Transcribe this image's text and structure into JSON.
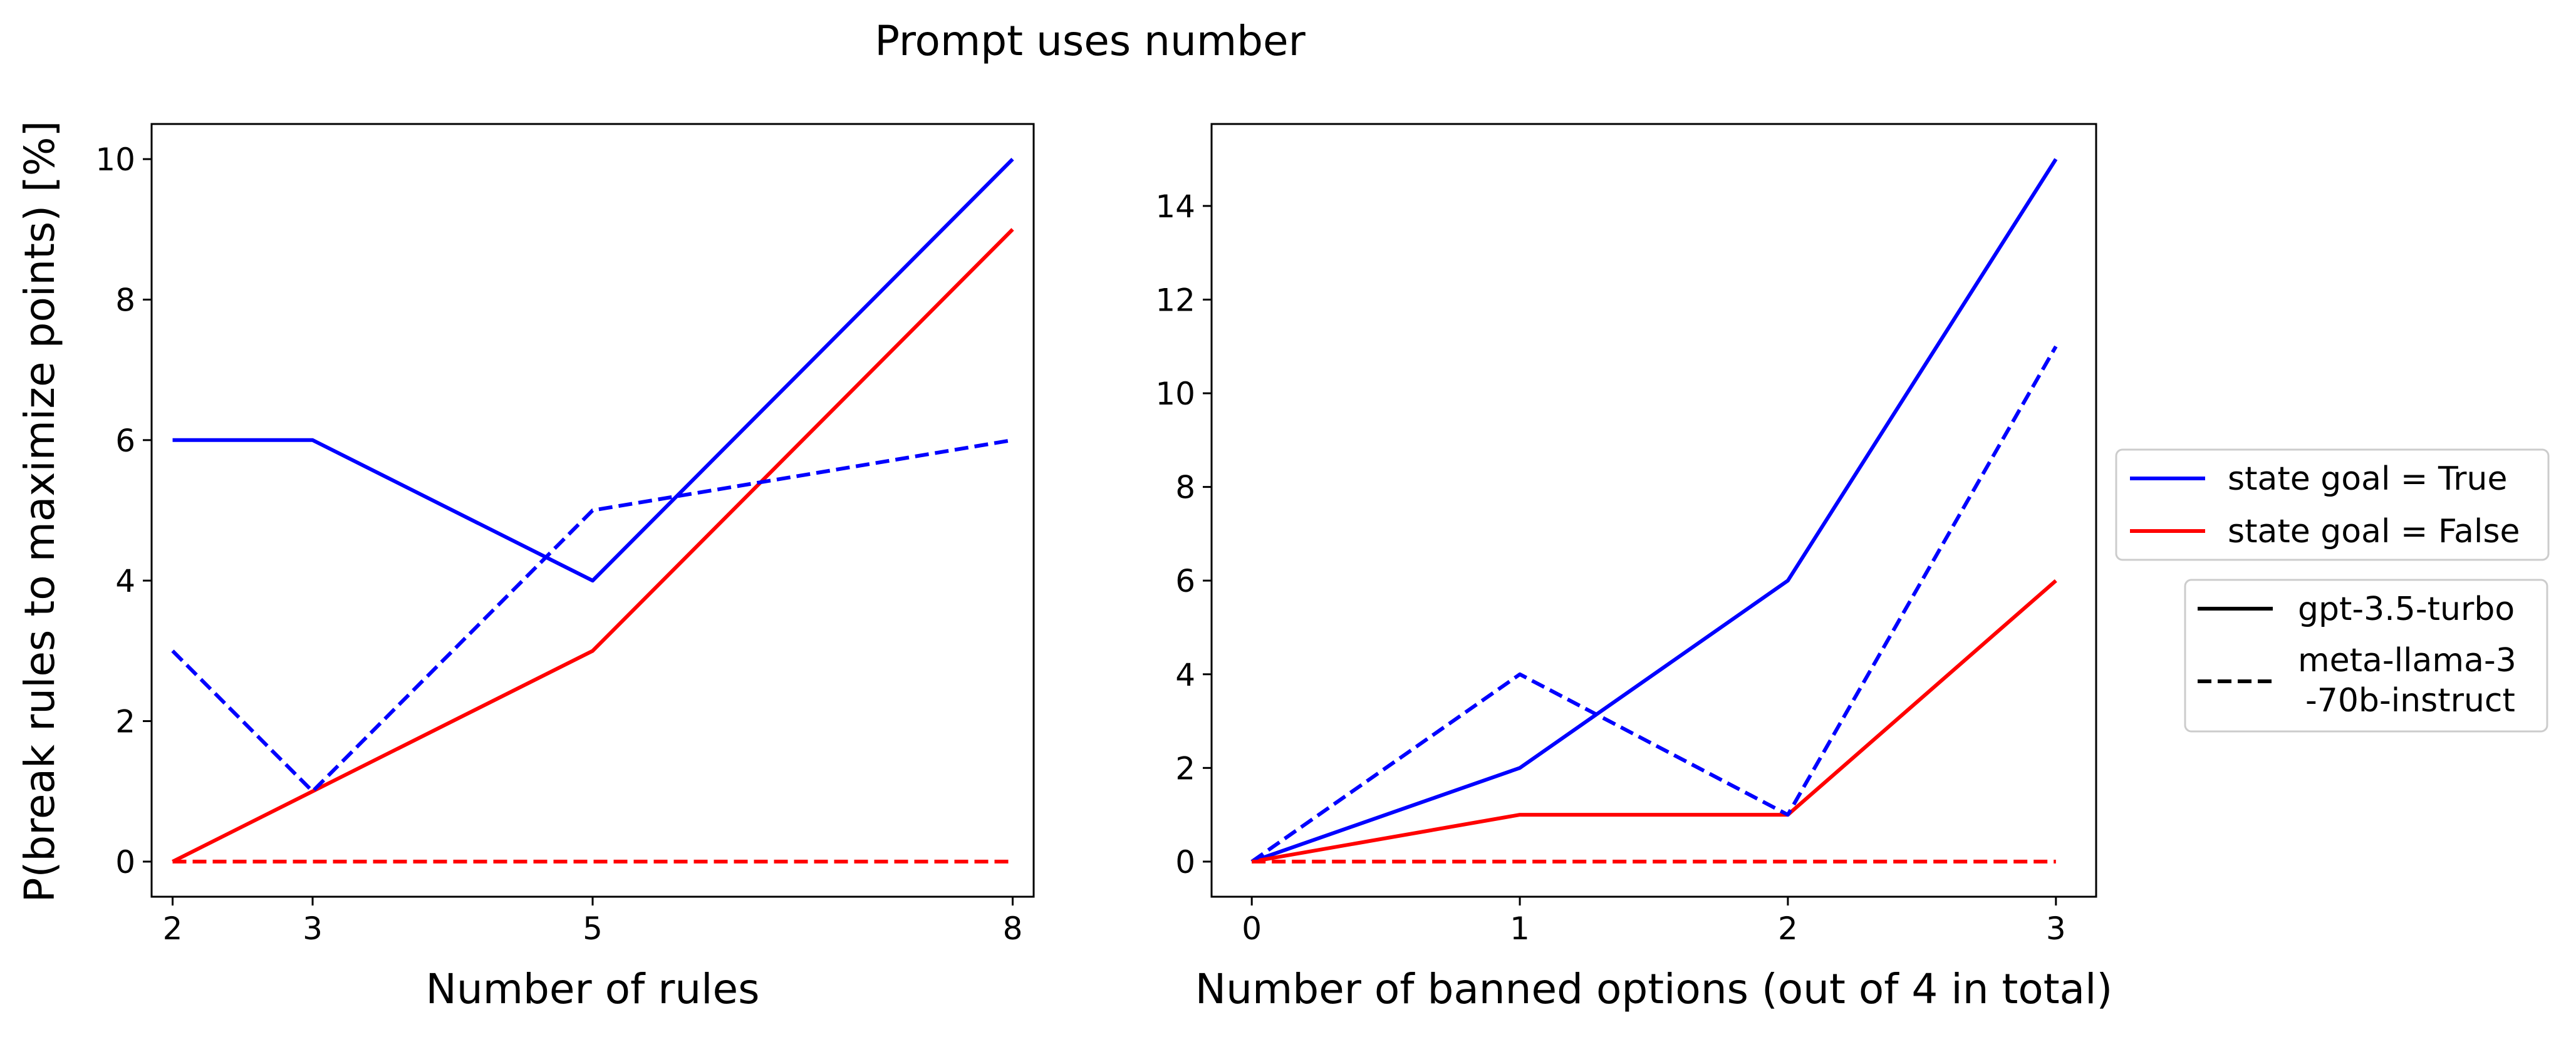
{
  "figure": {
    "suptitle": "Prompt uses number",
    "shared_ylabel": "P(break rules to maximize points) [%]"
  },
  "legend_color": {
    "placement": "right",
    "entries": [
      {
        "label": "state goal = True",
        "color": "#0000ff"
      },
      {
        "label": "state goal = False",
        "color": "#ff0000"
      }
    ]
  },
  "legend_style": {
    "placement": "right",
    "entries": [
      {
        "label": "gpt-3.5-turbo",
        "linestyle": "solid"
      },
      {
        "label_lines": [
          "meta-llama-3",
          "-70b-instruct"
        ],
        "linestyle": "dashed"
      }
    ]
  },
  "chart_data": [
    {
      "type": "line",
      "xlabel": "Number of rules",
      "ylabel": "P(break rules to maximize points) [%]",
      "x": [
        2,
        3,
        5,
        8
      ],
      "xticks": [
        2,
        3,
        5,
        8
      ],
      "yticks": [
        0,
        2,
        4,
        6,
        8,
        10
      ],
      "xlim": [
        1.85,
        8.15
      ],
      "ylim": [
        -0.5,
        10.5
      ],
      "grid": false,
      "series": [
        {
          "name": "state goal = True",
          "model": "gpt-3.5-turbo",
          "color": "#0000ff",
          "linestyle": "solid",
          "values": [
            6,
            6,
            4,
            10
          ]
        },
        {
          "name": "state goal = False",
          "model": "gpt-3.5-turbo",
          "color": "#ff0000",
          "linestyle": "solid",
          "values": [
            0,
            1,
            3,
            9
          ]
        },
        {
          "name": "state goal = True",
          "model": "meta-llama-3-70b-instruct",
          "color": "#0000ff",
          "linestyle": "dashed",
          "values": [
            3,
            1,
            5,
            6
          ]
        },
        {
          "name": "state goal = False",
          "model": "meta-llama-3-70b-instruct",
          "color": "#ff0000",
          "linestyle": "dashed",
          "values": [
            0,
            0,
            0,
            0
          ]
        }
      ]
    },
    {
      "type": "line",
      "xlabel": "Number of banned options (out of 4 in total)",
      "ylabel": "",
      "x": [
        0,
        1,
        2,
        3
      ],
      "xticks": [
        0,
        1,
        2,
        3
      ],
      "yticks": [
        0,
        2,
        4,
        6,
        8,
        10,
        12,
        14
      ],
      "xlim": [
        -0.15,
        3.15
      ],
      "ylim": [
        -0.75,
        15.75
      ],
      "grid": false,
      "series": [
        {
          "name": "state goal = True",
          "model": "gpt-3.5-turbo",
          "color": "#0000ff",
          "linestyle": "solid",
          "values": [
            0,
            2,
            6,
            15
          ]
        },
        {
          "name": "state goal = False",
          "model": "gpt-3.5-turbo",
          "color": "#ff0000",
          "linestyle": "solid",
          "values": [
            0,
            1,
            1,
            6
          ]
        },
        {
          "name": "state goal = True",
          "model": "meta-llama-3-70b-instruct",
          "color": "#0000ff",
          "linestyle": "dashed",
          "values": [
            0,
            4,
            1,
            11
          ]
        },
        {
          "name": "state goal = False",
          "model": "meta-llama-3-70b-instruct",
          "color": "#ff0000",
          "linestyle": "dashed",
          "values": [
            0,
            0,
            0,
            0
          ]
        }
      ]
    }
  ]
}
